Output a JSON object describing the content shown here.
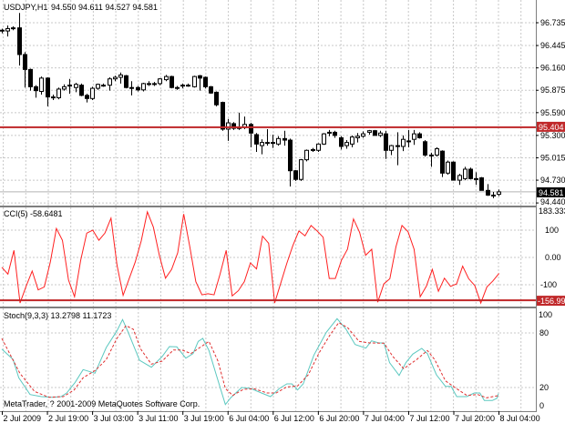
{
  "chart_data": [
    {
      "type": "candlestick",
      "title": "USDJPY,H1",
      "ohlc_label": "94.550 94.611 94.527 94.581",
      "ylim": [
        94.38,
        96.95
      ],
      "yticks": [
        "96.735",
        "96.445",
        "96.160",
        "95.875",
        "95.590",
        "95.300",
        "95.015",
        "94.730",
        "94.440"
      ],
      "grid": true,
      "hline": {
        "value": 95.404,
        "label": "95.404",
        "color": "#c0282a"
      },
      "last_price": {
        "value": 94.581,
        "label": "94.581"
      },
      "ohlc": [
        [
          96.63,
          96.66,
          96.6,
          96.64
        ],
        [
          96.63,
          96.7,
          96.56,
          96.66
        ],
        [
          96.66,
          96.69,
          96.64,
          96.67
        ],
        [
          96.67,
          96.86,
          96.19,
          96.33
        ],
        [
          96.33,
          96.36,
          95.91,
          96.14
        ],
        [
          96.14,
          96.15,
          95.87,
          95.92
        ],
        [
          95.92,
          95.94,
          95.78,
          95.87
        ],
        [
          95.86,
          96.05,
          95.82,
          96.03
        ],
        [
          96.03,
          96.04,
          95.67,
          95.79
        ],
        [
          95.79,
          95.82,
          95.75,
          95.78
        ],
        [
          95.78,
          95.91,
          95.76,
          95.89
        ],
        [
          95.89,
          95.95,
          95.87,
          95.92
        ],
        [
          95.93,
          96.02,
          95.83,
          95.94
        ],
        [
          95.91,
          95.97,
          95.85,
          95.95
        ],
        [
          95.94,
          95.96,
          95.8,
          95.81
        ],
        [
          95.81,
          95.83,
          95.72,
          95.77
        ],
        [
          95.77,
          95.92,
          95.75,
          95.9
        ],
        [
          95.9,
          95.96,
          95.88,
          95.95
        ],
        [
          95.94,
          95.96,
          95.92,
          95.94
        ],
        [
          95.94,
          96.04,
          95.87,
          96.02
        ],
        [
          96.02,
          96.06,
          95.99,
          96.04
        ],
        [
          96.04,
          96.1,
          95.96,
          96.07
        ],
        [
          96.06,
          96.07,
          95.9,
          95.91
        ],
        [
          95.91,
          95.99,
          95.81,
          95.91
        ],
        [
          95.91,
          95.93,
          95.86,
          95.88
        ],
        [
          95.88,
          95.97,
          95.86,
          95.96
        ],
        [
          95.96,
          95.99,
          95.93,
          95.96
        ],
        [
          95.96,
          95.98,
          95.93,
          95.96
        ],
        [
          95.96,
          96.03,
          95.94,
          96.02
        ],
        [
          96.01,
          96.07,
          95.99,
          96.05
        ],
        [
          96.05,
          96.06,
          95.9,
          95.91
        ],
        [
          95.91,
          95.93,
          95.88,
          95.91
        ],
        [
          95.93,
          95.96,
          95.9,
          95.94
        ],
        [
          95.94,
          95.96,
          95.92,
          95.94
        ],
        [
          95.92,
          96.06,
          95.91,
          96.05
        ],
        [
          96.06,
          96.07,
          95.87,
          96.03
        ],
        [
          96.04,
          96.05,
          95.9,
          95.92
        ],
        [
          95.92,
          95.93,
          95.83,
          95.84
        ],
        [
          95.85,
          95.86,
          95.67,
          95.69
        ],
        [
          95.72,
          95.73,
          95.36,
          95.38
        ],
        [
          95.38,
          95.51,
          95.23,
          95.46
        ],
        [
          95.45,
          95.47,
          95.37,
          95.39
        ],
        [
          95.4,
          95.59,
          95.37,
          95.4
        ],
        [
          95.4,
          95.54,
          95.38,
          95.44
        ],
        [
          95.44,
          95.46,
          95.15,
          95.33
        ],
        [
          95.31,
          95.33,
          95.09,
          95.19
        ],
        [
          95.17,
          95.25,
          95.06,
          95.21
        ],
        [
          95.21,
          95.38,
          95.17,
          95.21
        ],
        [
          95.21,
          95.31,
          95.14,
          95.21
        ],
        [
          95.19,
          95.29,
          95.17,
          95.26
        ],
        [
          95.26,
          95.36,
          95.17,
          95.24
        ],
        [
          95.24,
          95.26,
          94.65,
          94.85
        ],
        [
          94.85,
          94.86,
          94.72,
          94.74
        ],
        [
          94.74,
          95.0,
          94.72,
          94.99
        ],
        [
          94.99,
          95.12,
          94.97,
          95.11
        ],
        [
          95.11,
          95.14,
          95.09,
          95.12
        ],
        [
          95.11,
          95.2,
          95.09,
          95.19
        ],
        [
          95.19,
          95.33,
          95.18,
          95.32
        ],
        [
          95.33,
          95.37,
          95.29,
          95.34
        ],
        [
          95.34,
          95.36,
          95.27,
          95.3
        ],
        [
          95.27,
          95.29,
          95.12,
          95.16
        ],
        [
          95.17,
          95.24,
          95.13,
          95.21
        ],
        [
          95.19,
          95.3,
          95.15,
          95.28
        ],
        [
          95.27,
          95.33,
          95.21,
          95.29
        ],
        [
          95.29,
          95.35,
          95.27,
          95.32
        ],
        [
          95.34,
          95.37,
          95.31,
          95.36
        ],
        [
          95.36,
          95.37,
          95.3,
          95.3
        ],
        [
          95.3,
          95.36,
          95.28,
          95.33
        ],
        [
          95.32,
          95.36,
          95.0,
          95.11
        ],
        [
          95.11,
          95.18,
          95.05,
          95.17
        ],
        [
          95.17,
          95.34,
          94.92,
          95.16
        ],
        [
          95.16,
          95.3,
          95.1,
          95.25
        ],
        [
          95.23,
          95.37,
          95.15,
          95.23
        ],
        [
          95.25,
          95.37,
          95.18,
          95.32
        ],
        [
          95.32,
          95.34,
          95.26,
          95.27
        ],
        [
          95.22,
          95.24,
          95.03,
          95.05
        ],
        [
          95.05,
          95.08,
          94.9,
          95.05
        ],
        [
          95.05,
          95.15,
          95.03,
          95.13
        ],
        [
          95.1,
          95.11,
          94.77,
          94.82
        ],
        [
          94.82,
          94.98,
          94.8,
          94.96
        ],
        [
          94.96,
          94.97,
          94.73,
          94.73
        ],
        [
          94.73,
          94.81,
          94.67,
          94.79
        ],
        [
          94.75,
          94.9,
          94.73,
          94.87
        ],
        [
          94.87,
          94.89,
          94.74,
          94.75
        ],
        [
          94.75,
          94.83,
          94.67,
          94.75
        ],
        [
          94.76,
          94.77,
          94.6,
          94.6
        ],
        [
          94.6,
          94.68,
          94.53,
          94.54
        ],
        [
          94.54,
          94.58,
          94.5,
          94.54
        ],
        [
          94.55,
          94.611,
          94.527,
          94.581
        ]
      ]
    },
    {
      "type": "line",
      "title": "CCI(5) -58.6481",
      "ylim": [
        -170,
        183.3333
      ],
      "yticks": [
        "183.3333",
        "100",
        "0.00",
        "-100"
      ],
      "hline": {
        "value": -156.998,
        "label": "-156.998",
        "color": "#c0282a"
      },
      "series": [
        {
          "color": "#ff2020",
          "values": [
            -36,
            -61,
            26,
            -167,
            -106,
            -50,
            -119,
            -108,
            -17,
            106,
            63,
            -83,
            -144,
            -11,
            89,
            100,
            63,
            89,
            144,
            -28,
            -139,
            -78,
            -17,
            61,
            167,
            111,
            6,
            -76,
            -44,
            17,
            159,
            39,
            -89,
            -137,
            -133,
            -137,
            -61,
            26,
            -141,
            -122,
            -89,
            -20,
            -42,
            78,
            52,
            -167,
            -94,
            -22,
            44,
            97,
            79,
            117,
            97,
            74,
            -77,
            -77,
            -11,
            30,
            141,
            92,
            8,
            30,
            -164,
            -97,
            -78,
            39,
            117,
            94,
            30,
            -144,
            -106,
            -44,
            -124,
            -76,
            -106,
            -97,
            -32,
            -78,
            -103,
            -167,
            -108,
            -86,
            -58.6
          ]
        }
      ]
    },
    {
      "type": "line",
      "title": "Stoch(9,3,3) 13.2798 11.1723",
      "ylim": [
        0,
        100
      ],
      "yticks": [
        "100",
        "80",
        "20",
        "0"
      ],
      "series": [
        {
          "color": "#5cc8c0",
          "style": "solid",
          "points": [
            [
              0,
              62.3
            ],
            [
              2,
              50.7
            ],
            [
              3,
              30.7
            ],
            [
              5,
              12.3
            ],
            [
              7,
              10
            ],
            [
              9,
              9.3
            ],
            [
              10.5,
              10
            ],
            [
              11.5,
              14
            ],
            [
              13,
              25.7
            ],
            [
              14.4,
              39.7
            ],
            [
              16.5,
              35.7
            ],
            [
              18.5,
              64
            ],
            [
              20.4,
              82.3
            ],
            [
              21.4,
              94.7
            ],
            [
              22.4,
              80.7
            ],
            [
              24.4,
              50
            ],
            [
              26.5,
              42.3
            ],
            [
              28.4,
              54
            ],
            [
              29.7,
              65
            ],
            [
              31,
              64.7
            ],
            [
              32.6,
              52.3
            ],
            [
              33.9,
              57.3
            ],
            [
              34.8,
              70.7
            ],
            [
              35.6,
              74
            ],
            [
              36.7,
              60.7
            ],
            [
              38,
              34
            ],
            [
              39.6,
              1.3
            ],
            [
              40.6,
              9
            ],
            [
              42.5,
              20
            ],
            [
              44.1,
              19
            ],
            [
              46,
              14
            ],
            [
              47.6,
              10
            ],
            [
              49.2,
              19
            ],
            [
              50.5,
              24
            ],
            [
              51.4,
              24
            ],
            [
              52.4,
              17.3
            ],
            [
              53.4,
              24
            ],
            [
              55.3,
              55.7
            ],
            [
              57.5,
              80.7
            ],
            [
              59.4,
              95.7
            ],
            [
              61,
              84
            ],
            [
              62.6,
              67.3
            ],
            [
              64.5,
              63.3
            ],
            [
              65.5,
              71.3
            ],
            [
              66.8,
              69
            ],
            [
              67.7,
              69
            ],
            [
              68.7,
              47.3
            ],
            [
              70.4,
              33.3
            ],
            [
              71.6,
              47.3
            ],
            [
              72.8,
              56.7
            ],
            [
              74.4,
              63
            ],
            [
              75.4,
              57.3
            ],
            [
              77,
              34
            ],
            [
              78.6,
              21.3
            ],
            [
              79.6,
              21.3
            ],
            [
              80.6,
              10
            ],
            [
              82.4,
              10
            ],
            [
              83.7,
              14
            ],
            [
              84.7,
              14
            ],
            [
              85.5,
              5.7
            ],
            [
              86.9,
              5.7
            ],
            [
              87.7,
              8
            ],
            [
              88,
              13.3
            ]
          ]
        },
        {
          "color": "#e03030",
          "style": "dashed",
          "points": [
            [
              0,
              74
            ],
            [
              3.2,
              35.7
            ],
            [
              5.8,
              15.7
            ],
            [
              8.3,
              9.3
            ],
            [
              10.9,
              10
            ],
            [
              12.8,
              17.3
            ],
            [
              14.4,
              30.7
            ],
            [
              16.6,
              39
            ],
            [
              18.5,
              50.7
            ],
            [
              20.4,
              74
            ],
            [
              22,
              88
            ],
            [
              23.3,
              84
            ],
            [
              24.6,
              62.3
            ],
            [
              26.5,
              45.7
            ],
            [
              28.4,
              49
            ],
            [
              30.4,
              61.3
            ],
            [
              31.9,
              61.3
            ],
            [
              33.5,
              57.3
            ],
            [
              35.1,
              64
            ],
            [
              36.7,
              70.7
            ],
            [
              38.3,
              49
            ],
            [
              39.6,
              19
            ],
            [
              40.9,
              11.3
            ],
            [
              42.8,
              18
            ],
            [
              44.7,
              18.7
            ],
            [
              47,
              14
            ],
            [
              48.6,
              14
            ],
            [
              50.5,
              20.7
            ],
            [
              52.4,
              21.7
            ],
            [
              54.3,
              34
            ],
            [
              56.2,
              58
            ],
            [
              58.1,
              77.3
            ],
            [
              59.7,
              91.3
            ],
            [
              61.3,
              85.7
            ],
            [
              63.3,
              70.7
            ],
            [
              65.2,
              69
            ],
            [
              67.7,
              68.7
            ],
            [
              69.3,
              54
            ],
            [
              71.2,
              40.7
            ],
            [
              73.5,
              50.7
            ],
            [
              75.4,
              60.7
            ],
            [
              76.7,
              50.7
            ],
            [
              78.6,
              27.3
            ],
            [
              80.5,
              19
            ],
            [
              82.4,
              11.3
            ],
            [
              84.3,
              12.3
            ],
            [
              85.9,
              8.7
            ],
            [
              88,
              11.2
            ]
          ]
        }
      ]
    }
  ],
  "time_axis": [
    "2 Jul 2009",
    "2 Jul 19:00",
    "3 Jul 03:00",
    "3 Jul 11:00",
    "3 Jul 19:00",
    "6 Jul 04:00",
    "6 Jul 12:00",
    "6 Jul 20:00",
    "7 Jul 04:00",
    "7 Jul 12:00",
    "7 Jul 20:00",
    "8 Jul 04:00"
  ],
  "copyright": "MetaTrader, ? 2001-2009 MetaQuotes Software Corp."
}
